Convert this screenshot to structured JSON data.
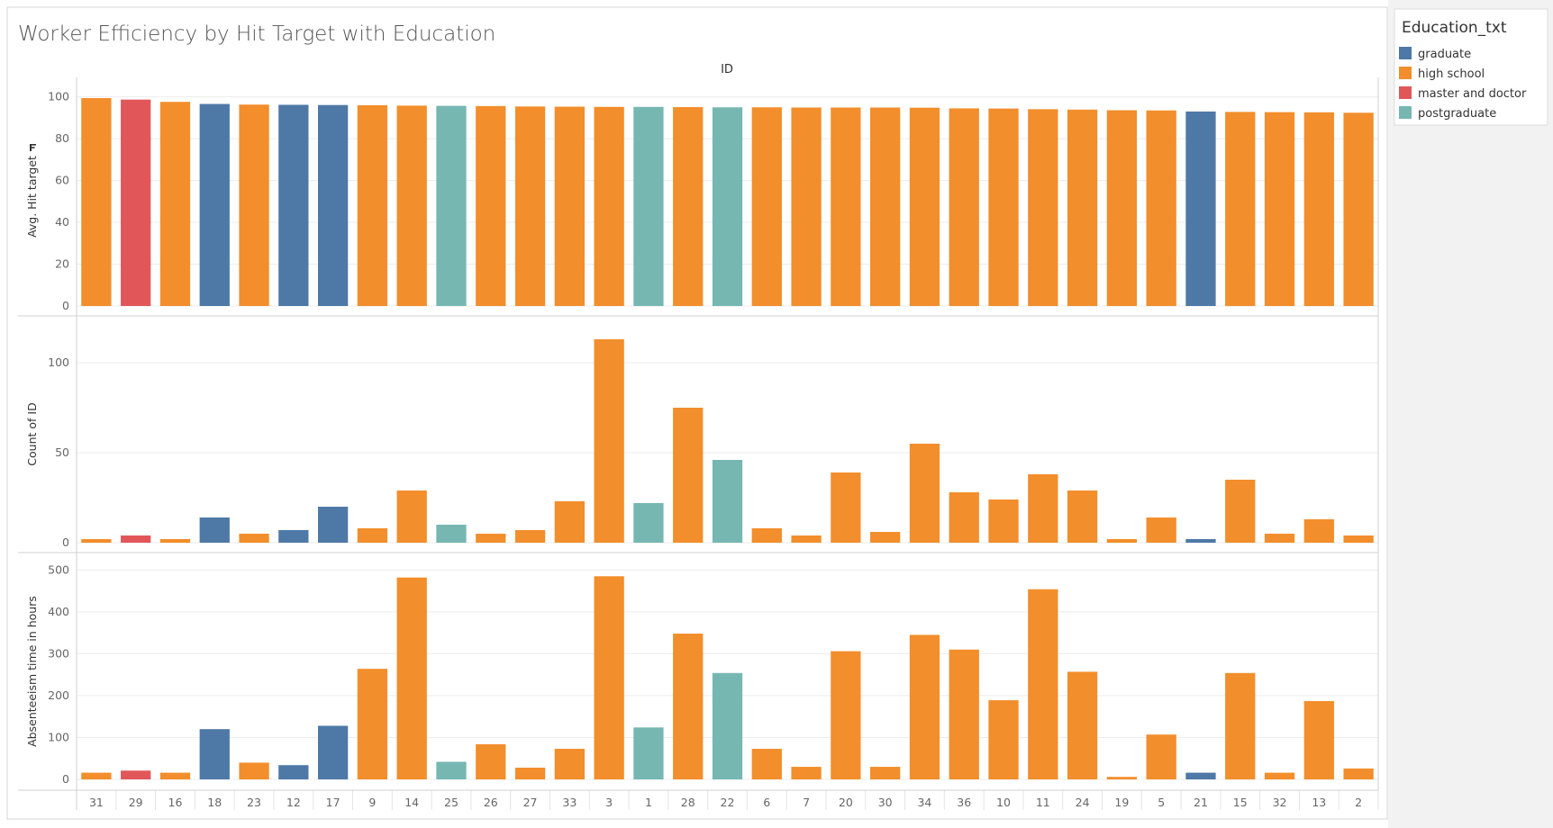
{
  "title": "Worker Efficiency by Hit Target with Education",
  "legend": {
    "title": "Education_txt",
    "items": [
      {
        "label": "graduate",
        "color": "#4e79a7"
      },
      {
        "label": "high school",
        "color": "#f28e2b"
      },
      {
        "label": "master and doctor",
        "color": "#e15759"
      },
      {
        "label": "postgraduate",
        "color": "#76b7b2"
      }
    ]
  },
  "chart_data": {
    "type": "bar",
    "column_header": "ID",
    "categories": [
      "31",
      "29",
      "16",
      "18",
      "23",
      "12",
      "17",
      "9",
      "14",
      "25",
      "26",
      "27",
      "33",
      "3",
      "1",
      "28",
      "22",
      "6",
      "7",
      "20",
      "30",
      "34",
      "36",
      "10",
      "11",
      "24",
      "19",
      "5",
      "21",
      "15",
      "32",
      "13",
      "2"
    ],
    "education": [
      "high school",
      "master and doctor",
      "high school",
      "graduate",
      "high school",
      "graduate",
      "graduate",
      "high school",
      "high school",
      "postgraduate",
      "high school",
      "high school",
      "high school",
      "high school",
      "postgraduate",
      "high school",
      "postgraduate",
      "high school",
      "high school",
      "high school",
      "high school",
      "high school",
      "high school",
      "high school",
      "high school",
      "high school",
      "high school",
      "high school",
      "graduate",
      "high school",
      "high school",
      "high school",
      "high school"
    ],
    "panels": [
      {
        "ylabel": "Avg. Hit target",
        "ylim": [
          0,
          105
        ],
        "ticks": [
          0,
          20,
          40,
          60,
          80,
          100
        ],
        "values": [
          99.4,
          98.7,
          97.6,
          96.6,
          96.3,
          96.2,
          96.1,
          96.0,
          95.8,
          95.7,
          95.6,
          95.4,
          95.3,
          95.2,
          95.2,
          95.1,
          95.0,
          95.0,
          94.9,
          94.9,
          94.9,
          94.8,
          94.5,
          94.4,
          94.1,
          93.9,
          93.6,
          93.5,
          93.0,
          92.8,
          92.7,
          92.6,
          92.4
        ]
      },
      {
        "ylabel": "Count of ID",
        "ylim": [
          0,
          120
        ],
        "ticks": [
          0,
          50,
          100
        ],
        "values": [
          2,
          4,
          2,
          14,
          5,
          7,
          20,
          8,
          29,
          10,
          5,
          7,
          23,
          113,
          22,
          75,
          46,
          8,
          4,
          39,
          6,
          55,
          28,
          24,
          38,
          29,
          2,
          14,
          2,
          35,
          5,
          13,
          4
        ]
      },
      {
        "ylabel": "Absenteeism time in hours",
        "ylim": [
          0,
          520
        ],
        "ticks": [
          0,
          100,
          200,
          300,
          400,
          500
        ],
        "values": [
          16,
          21,
          16,
          120,
          40,
          34,
          128,
          264,
          482,
          42,
          84,
          28,
          73,
          485,
          124,
          348,
          254,
          73,
          30,
          306,
          30,
          345,
          310,
          189,
          454,
          257,
          6,
          107,
          16,
          254,
          16,
          187,
          26
        ]
      }
    ],
    "grid": true,
    "legend_position": "right"
  }
}
